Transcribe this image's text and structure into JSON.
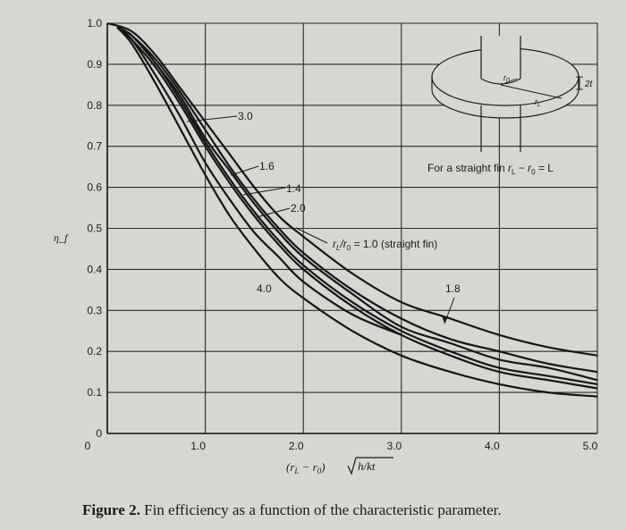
{
  "chart_data": {
    "type": "line",
    "title": "",
    "ylabel": "η_f",
    "xlabel_parts": {
      "lhs": "(r",
      "sub_l": "L",
      "mid": " − r",
      "sub_0": "0",
      "rhs": ")",
      "root": "h/kt"
    },
    "xlim": [
      0,
      5.0
    ],
    "ylim": [
      0,
      1.0
    ],
    "x_ticks": [
      "0",
      "1.0",
      "2.0",
      "3.0",
      "4.0",
      "5.0"
    ],
    "y_ticks": [
      "0",
      "0.1",
      "0.2",
      "0.3",
      "0.4",
      "0.5",
      "0.6",
      "0.7",
      "0.8",
      "0.9",
      "1.0"
    ],
    "grid": true,
    "curve_labels": [
      "3.0",
      "1.6",
      "1.4",
      "2.0",
      "4.0",
      "1.8",
      "r_L/r_0 = 1.0 (straight fin)"
    ],
    "label_parts": {
      "curve_1_0": {
        "r": "r",
        "subL": "L",
        "slash": "/r",
        "sub0": "0",
        "rest": " = 1.0 (straight fin)"
      }
    },
    "series": [
      {
        "name": "1.0",
        "x": [
          0,
          0.25,
          0.5,
          0.75,
          1.0,
          1.25,
          1.5,
          1.75,
          2.0,
          2.5,
          3.0,
          3.5,
          4.0,
          4.5,
          5.0
        ],
        "y": [
          1.0,
          0.98,
          0.92,
          0.84,
          0.76,
          0.68,
          0.6,
          0.53,
          0.48,
          0.39,
          0.32,
          0.28,
          0.24,
          0.21,
          0.19
        ]
      },
      {
        "name": "1.4",
        "x": [
          0.1,
          0.25,
          0.5,
          0.75,
          1.0,
          1.25,
          1.5,
          1.75,
          2.0,
          2.5,
          3.0,
          3.5,
          4.0,
          4.5,
          5.0
        ],
        "y": [
          0.99,
          0.97,
          0.91,
          0.83,
          0.74,
          0.65,
          0.57,
          0.5,
          0.44,
          0.35,
          0.28,
          0.23,
          0.2,
          0.17,
          0.15
        ]
      },
      {
        "name": "1.6",
        "x": [
          0.1,
          0.25,
          0.5,
          0.75,
          1.0,
          1.25,
          1.5,
          1.75,
          2.0,
          2.5,
          3.0,
          3.5,
          4.0,
          4.5,
          5.0
        ],
        "y": [
          0.99,
          0.97,
          0.9,
          0.82,
          0.72,
          0.64,
          0.56,
          0.49,
          0.43,
          0.34,
          0.26,
          0.22,
          0.18,
          0.16,
          0.13
        ]
      },
      {
        "name": "1.8",
        "x": [
          0.1,
          0.25,
          0.5,
          0.75,
          1.0,
          1.25,
          1.5,
          1.75,
          2.0,
          2.5,
          3.0,
          3.5,
          4.0,
          4.5,
          5.0
        ],
        "y": [
          0.99,
          0.97,
          0.9,
          0.81,
          0.71,
          0.62,
          0.54,
          0.47,
          0.41,
          0.32,
          0.25,
          0.2,
          0.16,
          0.14,
          0.12
        ]
      },
      {
        "name": "2.0",
        "x": [
          0.1,
          0.25,
          0.5,
          0.75,
          1.0,
          1.25,
          1.5,
          1.75,
          2.0,
          2.5,
          3.0,
          3.5,
          4.0,
          4.5,
          5.0
        ],
        "y": [
          0.99,
          0.96,
          0.89,
          0.8,
          0.7,
          0.61,
          0.53,
          0.46,
          0.4,
          0.31,
          0.24,
          0.19,
          0.15,
          0.13,
          0.11
        ]
      },
      {
        "name": "3.0",
        "x": [
          0.1,
          0.25,
          0.5,
          0.75,
          1.0,
          1.25,
          1.5,
          1.75,
          2.0,
          2.5,
          3.0
        ],
        "y": [
          0.99,
          0.96,
          0.87,
          0.77,
          0.66,
          0.57,
          0.49,
          0.43,
          0.37,
          0.29,
          0.24
        ]
      },
      {
        "name": "4.0",
        "x": [
          0.1,
          0.25,
          0.5,
          0.75,
          1.0,
          1.25,
          1.5,
          1.75,
          2.0,
          2.5,
          3.0,
          3.5,
          4.0,
          4.5,
          5.0
        ],
        "y": [
          0.99,
          0.95,
          0.85,
          0.74,
          0.63,
          0.53,
          0.45,
          0.38,
          0.33,
          0.25,
          0.19,
          0.15,
          0.12,
          0.1,
          0.09
        ]
      }
    ]
  },
  "inset": {
    "caption": "For a straight fin r_L − r_0 = L",
    "cap_parts": {
      "pre": "For a straight fin ",
      "r1": "r",
      "sub1": "L",
      "mid": " − r",
      "sub2": "0",
      "post": " = L"
    },
    "r0_label": "r",
    "r0_sub": "0",
    "rl_label": "r",
    "rl_sub": "L",
    "thickness_label": "2t"
  },
  "figure_caption": {
    "prefix": "Figure 2.",
    "text": " Fin efficiency as a function of the characteristic parameter."
  }
}
